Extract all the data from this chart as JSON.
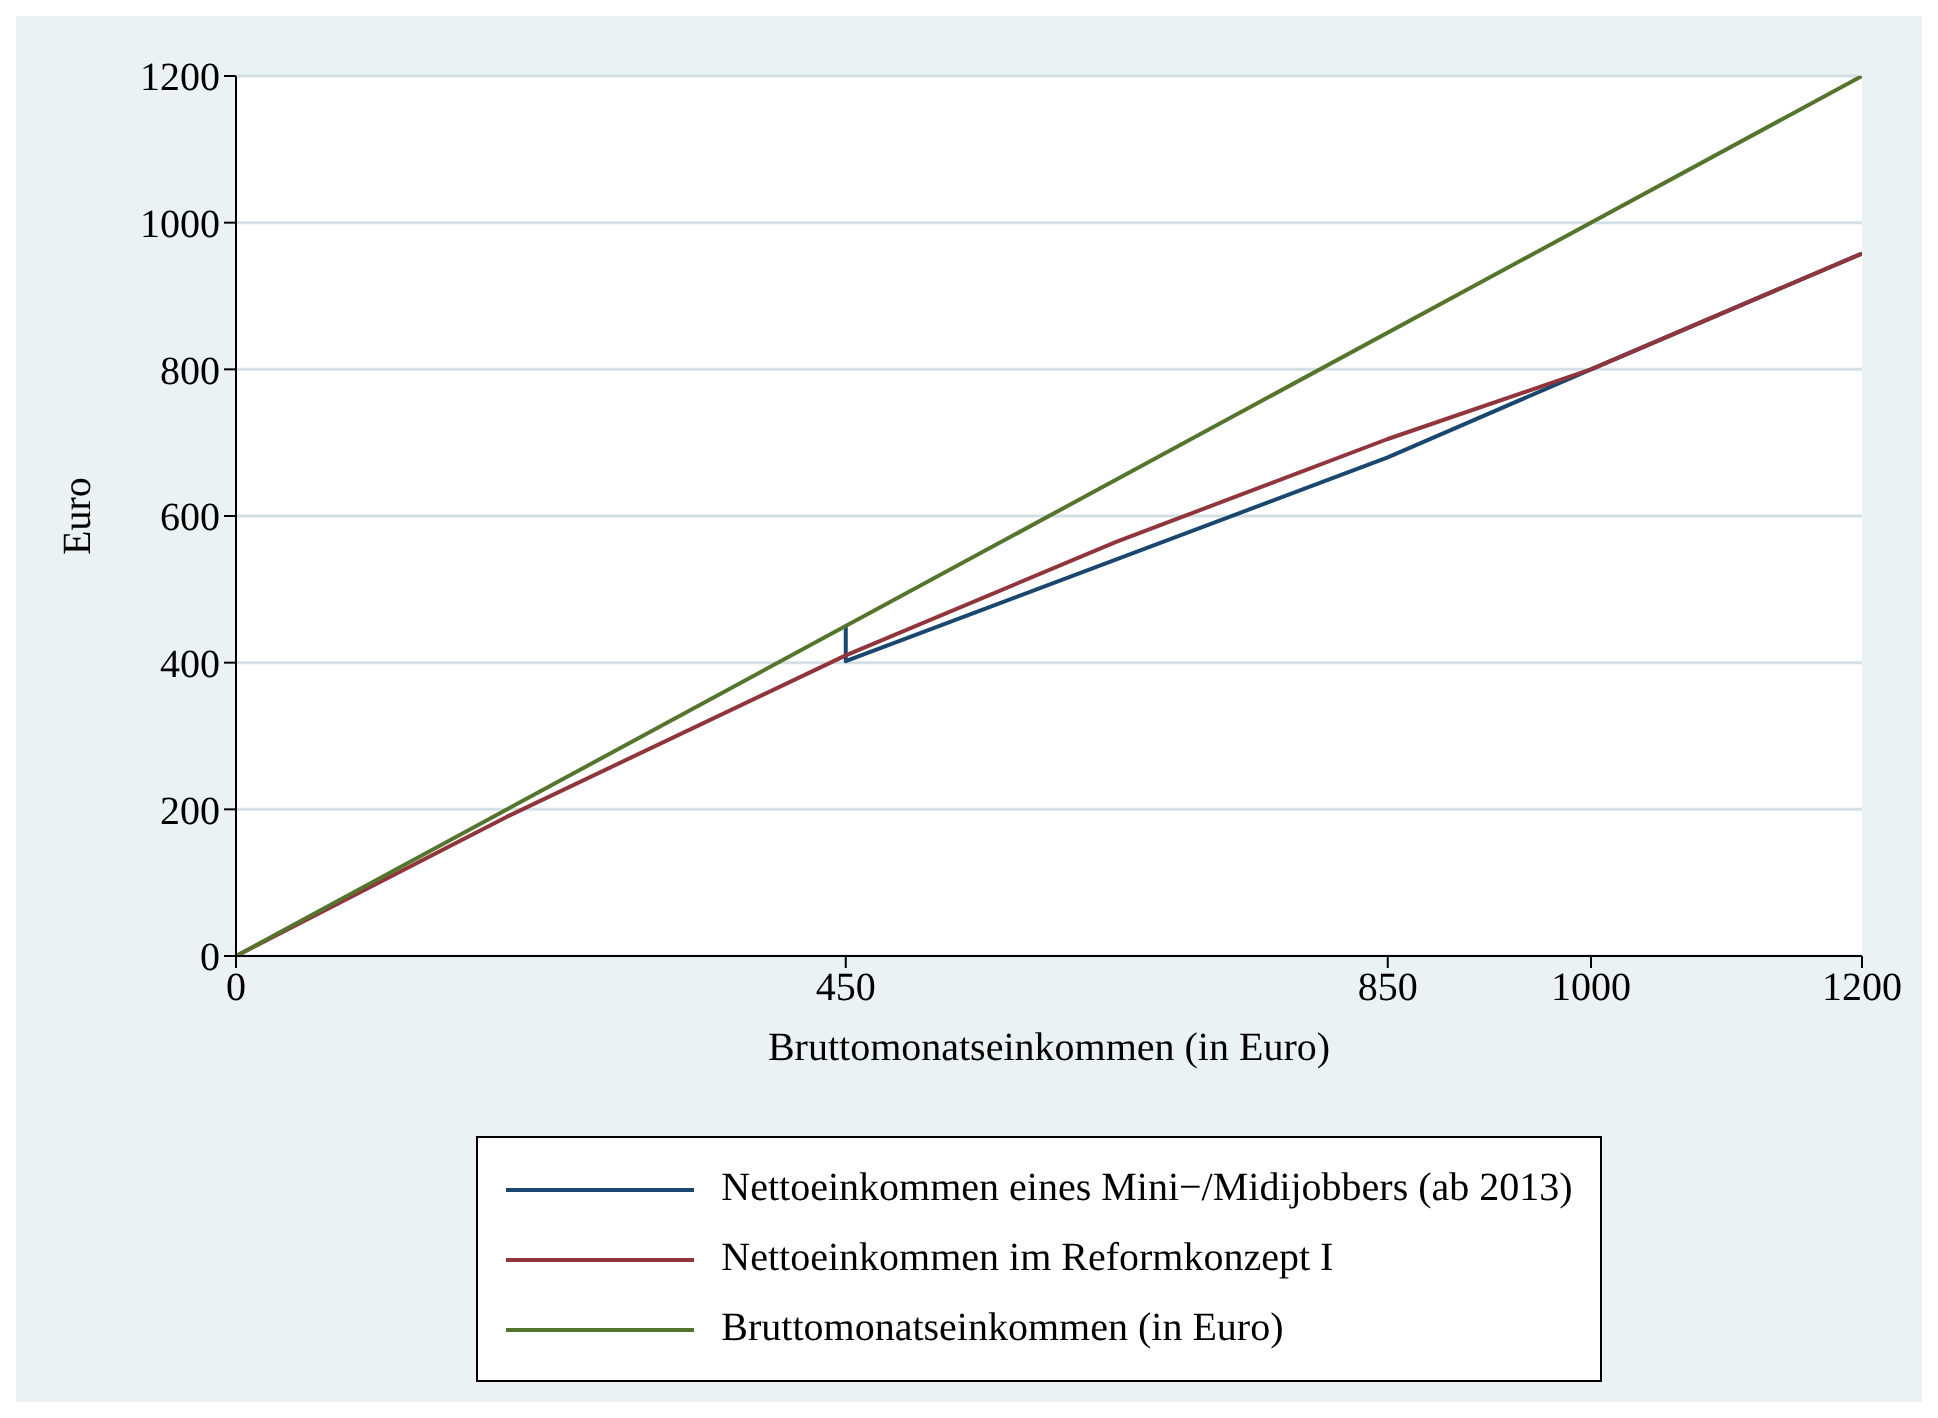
{
  "chart_data": {
    "type": "line",
    "xlabel": "Bruttomonatseinkommen (in Euro)",
    "ylabel": "Euro",
    "xlim": [
      0,
      1200
    ],
    "xticks": [
      0,
      450,
      850,
      1000,
      1200
    ],
    "ylim": [
      0,
      1200
    ],
    "yticks": [
      0,
      200,
      400,
      600,
      800,
      1000,
      1200
    ],
    "grid": "y",
    "legend": "bottom",
    "marker": "none",
    "line_style": "solid",
    "series": [
      {
        "name": "Nettoeinkommen eines Mini−/Midijobbers (ab 2013)",
        "color": "#1a476f",
        "x": [
          450,
          450,
          850,
          1000,
          1200
        ],
        "values": [
          450,
          402,
          680,
          800,
          958
        ]
      },
      {
        "name": "Nettoeinkommen im Reformkonzept I",
        "color": "#90353b",
        "x": [
          0,
          200,
          450,
          650,
          850,
          1000,
          1200
        ],
        "values": [
          0,
          190,
          410,
          565,
          705,
          800,
          958
        ]
      },
      {
        "name": "Bruttomonatseinkommen (in Euro)",
        "color": "#55752f",
        "x": [
          0,
          1200
        ],
        "values": [
          0,
          1200
        ]
      }
    ]
  }
}
